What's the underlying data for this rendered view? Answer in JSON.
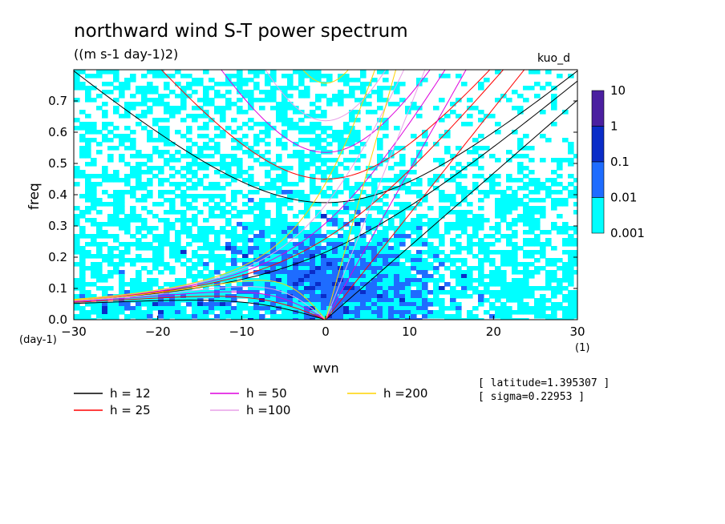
{
  "chart_data": {
    "type": "heatmap",
    "title": "northward wind S-T power spectrum",
    "subtitle": "((m s-1 day-1)2)",
    "tag": "kuo_d",
    "xlabel": "wvn",
    "xunit": "(1)",
    "ylabel": "freq",
    "yunit": "(day-1)",
    "xlim": [
      -30,
      30
    ],
    "ylim": [
      0,
      0.8
    ],
    "x_ticks": [
      -30,
      -20,
      -10,
      0,
      10,
      20,
      30
    ],
    "y_ticks": [
      0.0,
      0.1,
      0.2,
      0.3,
      0.4,
      0.5,
      0.6,
      0.7
    ],
    "y_tick_labels": [
      "0.0",
      "0.1",
      "0.2",
      "0.3",
      "0.4",
      "0.5",
      "0.6",
      "0.7"
    ],
    "x_tick_labels": [
      "-30",
      "-20",
      "-10",
      "0",
      "10",
      "20",
      "30"
    ],
    "colorbar": {
      "levels": [
        "0.001",
        "0.01",
        "0.1",
        "1",
        "10"
      ],
      "colors": [
        "#00ffff",
        "#1e6cff",
        "#0a2cc8",
        "#1010a0",
        "#4b1fa0"
      ]
    },
    "dispersion_curves": [
      {
        "name": "h = 12",
        "color": "#000000"
      },
      {
        "name": "h = 25",
        "color": "#ff0000"
      },
      {
        "name": "h = 50",
        "color": "#dd00dd"
      },
      {
        "name": "h =100",
        "color": "#e8a0e8"
      },
      {
        "name": "h =200",
        "color": "#ffd400"
      }
    ],
    "info": [
      "[ latitude=1.395307 ]",
      "[ sigma=0.22953 ]"
    ]
  }
}
